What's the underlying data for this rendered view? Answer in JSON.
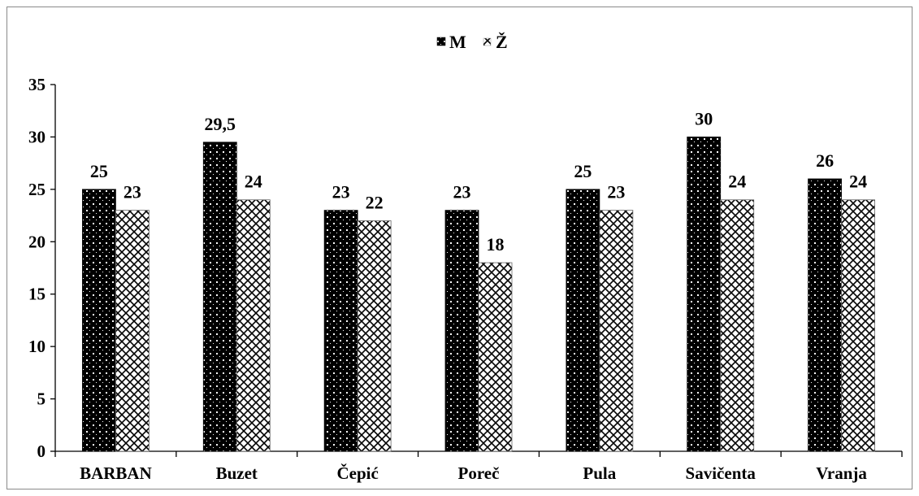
{
  "chart_data": {
    "type": "bar",
    "title": "",
    "xlabel": "",
    "ylabel": "",
    "categories": [
      "BARBAN",
      "Buzet",
      "Čepić",
      "Poreč",
      "Pula",
      "Savičenta",
      "Vranja"
    ],
    "series": [
      {
        "name": "M",
        "values": [
          25,
          29.5,
          23,
          23,
          25,
          30,
          26
        ],
        "labels": [
          "25",
          "29,5",
          "23",
          "23",
          "25",
          "30",
          "26"
        ]
      },
      {
        "name": "Ž",
        "values": [
          23,
          24,
          22,
          18,
          23,
          24,
          24
        ],
        "labels": [
          "23",
          "24",
          "22",
          "18",
          "23",
          "24",
          "24"
        ]
      }
    ],
    "ylim": [
      0,
      35
    ],
    "yticks": [
      0,
      5,
      10,
      15,
      20,
      25,
      30,
      35
    ],
    "grid": false,
    "legend": "top-center",
    "colors": {
      "M": "#000000",
      "Ž": "#ffffff",
      "axis": "#000000",
      "frame": "#8a8a8a"
    }
  }
}
